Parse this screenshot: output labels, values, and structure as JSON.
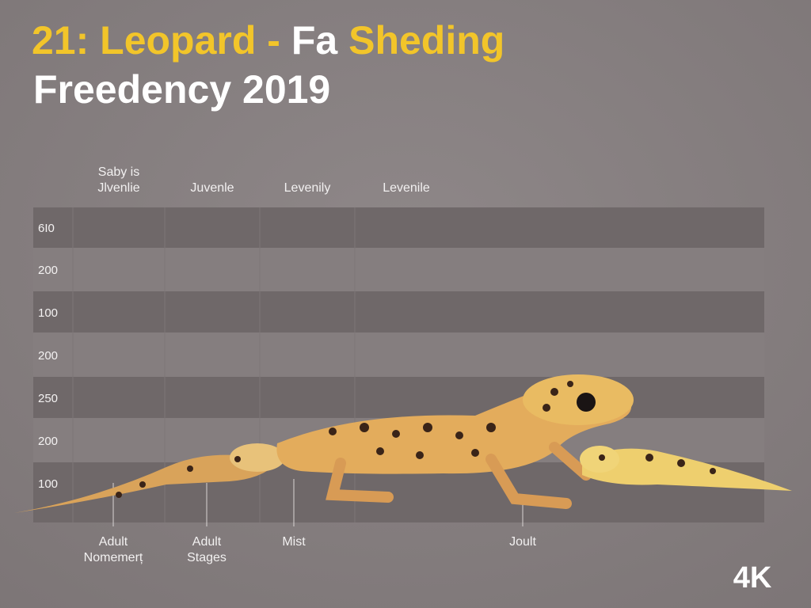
{
  "title": {
    "line1": [
      "21: Leopard - ",
      "Fa",
      " Sheding"
    ],
    "line2": "Freedency 2019"
  },
  "column_labels": [
    [
      "Saby is",
      "Jlvenlie"
    ],
    [
      "Juvenle"
    ],
    [
      "Levenily"
    ],
    [
      "Levenile"
    ]
  ],
  "row_labels": [
    "6I0",
    "200",
    "100",
    "200",
    "250",
    "200",
    "100"
  ],
  "footer_labels": [
    [
      "Adult",
      "Nomemerț"
    ],
    [
      "Adult",
      "Stages"
    ],
    [
      "Mist"
    ],
    [
      "Joult"
    ]
  ],
  "badge": "4K"
}
